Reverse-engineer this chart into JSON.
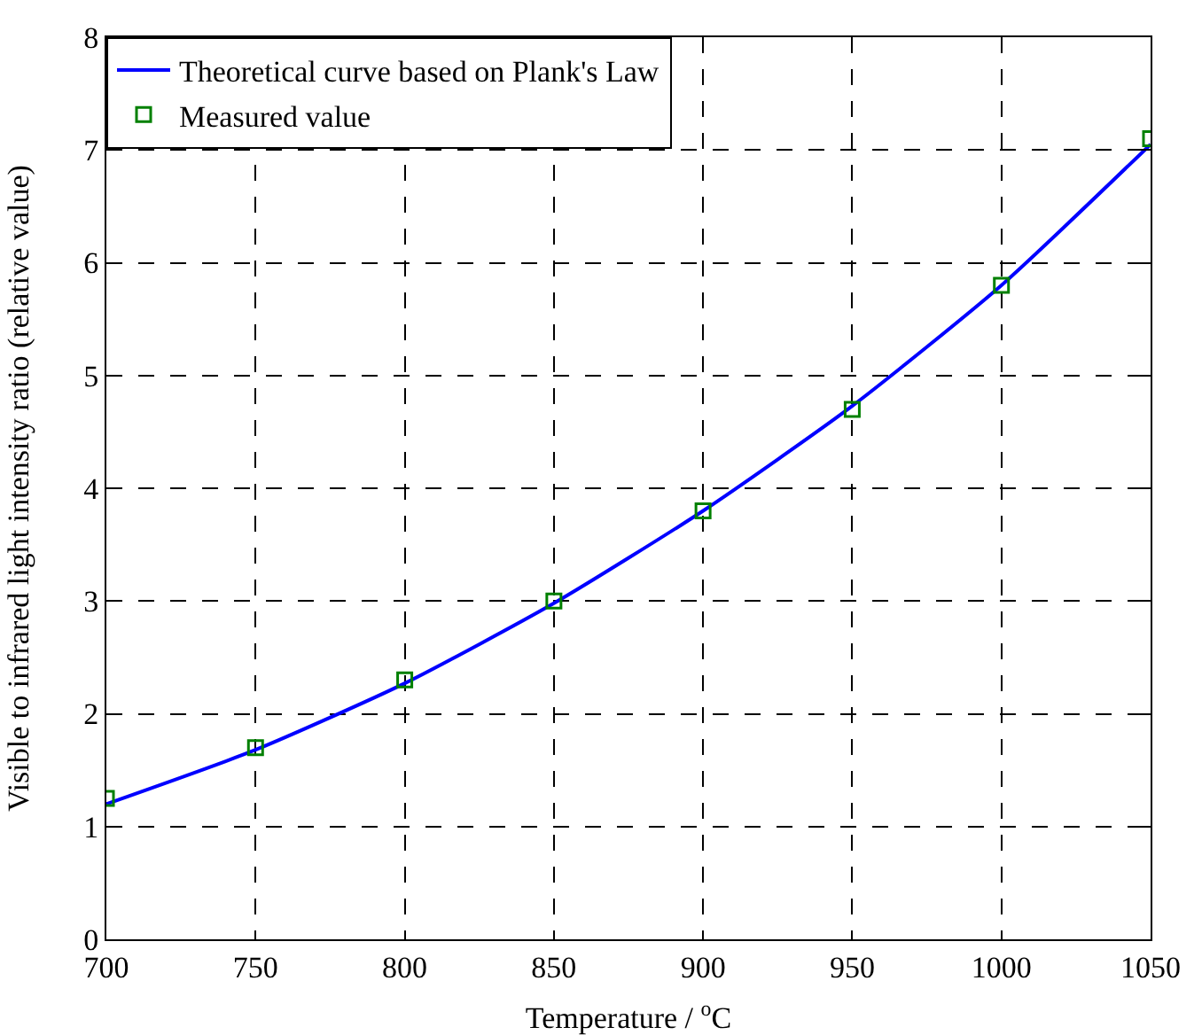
{
  "chart_data": {
    "type": "line",
    "xlabel": "Temperature / $^{o}$C",
    "ylabel": "Visible to infrared light intensity ratio (relative value)",
    "xlim": [
      700,
      1050
    ],
    "xticks": [
      700,
      750,
      800,
      850,
      900,
      950,
      1000,
      1050
    ],
    "ylim": [
      0,
      8
    ],
    "yticks": [
      0,
      1,
      2,
      3,
      4,
      5,
      6,
      7,
      8
    ],
    "grid": true,
    "legend": "top left",
    "series": [
      {
        "name": "Theoretical curve based on Plank's Law",
        "type": "line",
        "color": "#0000ff",
        "marker": "none",
        "line_style": "solid",
        "x": [
          700,
          750,
          800,
          850,
          900,
          950,
          1000,
          1050
        ],
        "values": [
          1.2,
          1.68,
          2.27,
          2.98,
          3.8,
          4.73,
          5.8,
          7.05
        ]
      },
      {
        "name": "Measured value",
        "type": "scatter",
        "color": "#008000",
        "marker": "square",
        "x": [
          700,
          750,
          800,
          850,
          900,
          950,
          1000,
          1050
        ],
        "values": [
          1.25,
          1.7,
          2.3,
          3.0,
          3.8,
          4.7,
          5.8,
          7.1
        ]
      }
    ]
  }
}
